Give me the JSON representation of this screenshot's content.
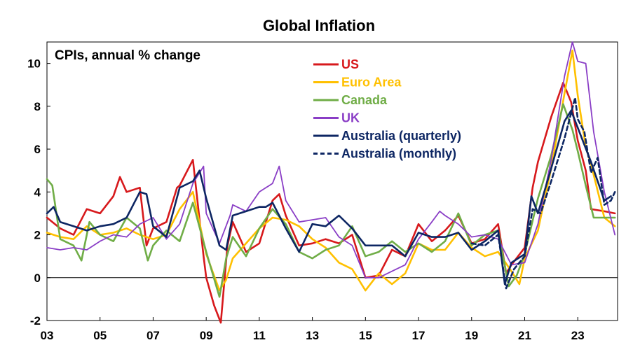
{
  "chart_data": {
    "type": "line",
    "title": "Global Inflation",
    "subtitle": "CPIs, annual % change",
    "xlabel": "",
    "ylabel": "",
    "xlim": [
      2003.0,
      2024.5
    ],
    "ylim": [
      -2,
      11
    ],
    "yticks": [
      -2,
      0,
      2,
      4,
      6,
      8,
      10
    ],
    "xticks": [
      2003,
      2005,
      2007,
      2009,
      2011,
      2013,
      2015,
      2017,
      2019,
      2021,
      2023
    ],
    "xtick_labels": [
      "03",
      "05",
      "07",
      "09",
      "11",
      "13",
      "15",
      "17",
      "19",
      "21",
      "23"
    ],
    "zero_line": true,
    "legend_position": "top-center",
    "series": [
      {
        "name": "US",
        "color": "#d7191c",
        "dash": false,
        "x": [
          2003.0,
          2003.5,
          2004.0,
          2004.5,
          2005.0,
          2005.5,
          2005.75,
          2006.0,
          2006.5,
          2006.75,
          2007.0,
          2007.5,
          2007.9,
          2008.0,
          2008.5,
          2008.9,
          2009.0,
          2009.3,
          2009.55,
          2009.8,
          2010.0,
          2010.5,
          2011.0,
          2011.5,
          2011.75,
          2012.0,
          2012.5,
          2013.0,
          2013.5,
          2014.0,
          2014.5,
          2015.0,
          2015.5,
          2016.0,
          2016.5,
          2017.0,
          2017.5,
          2018.0,
          2018.5,
          2019.0,
          2019.5,
          2020.0,
          2020.3,
          2020.5,
          2021.0,
          2021.3,
          2021.5,
          2022.0,
          2022.45,
          2022.75,
          2023.0,
          2023.3,
          2023.5,
          2024.0,
          2024.4
        ],
        "y": [
          2.8,
          2.3,
          2.0,
          3.2,
          3.0,
          3.8,
          4.7,
          4.0,
          4.2,
          1.5,
          2.3,
          2.6,
          4.2,
          4.3,
          5.5,
          1.0,
          0.0,
          -1.3,
          -2.1,
          1.5,
          2.6,
          1.2,
          1.6,
          3.6,
          3.9,
          2.9,
          1.5,
          1.6,
          1.8,
          1.6,
          2.0,
          0.0,
          0.1,
          1.3,
          1.0,
          2.5,
          1.7,
          2.2,
          2.9,
          1.6,
          1.8,
          2.5,
          0.2,
          0.6,
          1.4,
          4.2,
          5.4,
          7.5,
          9.1,
          8.2,
          6.4,
          5.0,
          3.2,
          3.1,
          3.0
        ]
      },
      {
        "name": "Euro Area",
        "color": "#ffc000",
        "dash": false,
        "x": [
          2003.0,
          2003.5,
          2004.0,
          2004.5,
          2005.0,
          2005.5,
          2006.0,
          2006.5,
          2007.0,
          2007.5,
          2008.0,
          2008.5,
          2009.0,
          2009.5,
          2009.75,
          2010.0,
          2010.5,
          2011.0,
          2011.5,
          2012.0,
          2012.5,
          2013.0,
          2013.5,
          2014.0,
          2014.5,
          2015.0,
          2015.5,
          2016.0,
          2016.5,
          2017.0,
          2017.5,
          2018.0,
          2018.5,
          2019.0,
          2019.5,
          2020.0,
          2020.5,
          2020.8,
          2021.0,
          2021.5,
          2022.0,
          2022.5,
          2022.8,
          2023.0,
          2023.3,
          2023.5,
          2024.0,
          2024.4
        ],
        "y": [
          2.1,
          1.9,
          1.8,
          2.4,
          2.0,
          2.1,
          2.3,
          2.0,
          1.8,
          2.0,
          3.2,
          4.0,
          1.1,
          -0.6,
          -0.1,
          0.9,
          1.6,
          2.3,
          2.8,
          2.7,
          2.4,
          1.8,
          1.4,
          0.7,
          0.4,
          -0.6,
          0.2,
          -0.3,
          0.2,
          1.6,
          1.3,
          1.3,
          2.1,
          1.4,
          1.0,
          1.2,
          0.3,
          -0.3,
          0.9,
          2.2,
          5.1,
          8.6,
          10.6,
          8.5,
          6.1,
          5.3,
          2.8,
          2.4
        ]
      },
      {
        "name": "Canada",
        "color": "#70ad47",
        "dash": false,
        "x": [
          2003.0,
          2003.2,
          2003.5,
          2004.0,
          2004.3,
          2004.6,
          2005.0,
          2005.5,
          2006.0,
          2006.5,
          2006.8,
          2007.0,
          2007.5,
          2008.0,
          2008.5,
          2009.0,
          2009.5,
          2009.75,
          2010.0,
          2010.5,
          2011.0,
          2011.5,
          2012.0,
          2012.5,
          2013.0,
          2013.5,
          2014.0,
          2014.5,
          2015.0,
          2015.5,
          2016.0,
          2016.5,
          2017.0,
          2017.5,
          2018.0,
          2018.5,
          2019.0,
          2019.5,
          2020.0,
          2020.4,
          2020.7,
          2021.0,
          2021.5,
          2022.0,
          2022.45,
          2022.8,
          2023.0,
          2023.3,
          2023.6,
          2024.0,
          2024.4
        ],
        "y": [
          4.6,
          4.3,
          1.8,
          1.5,
          0.8,
          2.6,
          2.0,
          1.7,
          2.8,
          2.3,
          0.8,
          1.5,
          2.2,
          1.7,
          3.5,
          1.2,
          -0.9,
          0.9,
          1.9,
          1.0,
          2.3,
          3.2,
          2.5,
          1.2,
          0.9,
          1.3,
          1.5,
          2.4,
          1.0,
          1.2,
          1.7,
          1.2,
          1.6,
          1.2,
          1.7,
          3.0,
          1.5,
          2.0,
          2.2,
          -0.4,
          0.1,
          1.1,
          3.7,
          5.7,
          8.1,
          6.9,
          5.9,
          4.3,
          2.8,
          2.8,
          2.8
        ]
      },
      {
        "name": "UK",
        "color": "#8a3ec6",
        "dash": false,
        "x": [
          2003.0,
          2003.5,
          2004.0,
          2004.5,
          2005.0,
          2005.5,
          2006.0,
          2006.5,
          2007.0,
          2007.5,
          2008.0,
          2008.5,
          2008.9,
          2009.0,
          2009.5,
          2009.9,
          2010.0,
          2010.5,
          2011.0,
          2011.5,
          2011.75,
          2012.0,
          2012.5,
          2013.0,
          2013.5,
          2014.0,
          2014.5,
          2015.0,
          2015.5,
          2016.0,
          2016.5,
          2017.0,
          2017.5,
          2017.8,
          2018.0,
          2018.5,
          2019.0,
          2019.5,
          2020.0,
          2020.5,
          2021.0,
          2021.5,
          2022.0,
          2022.5,
          2022.8,
          2023.0,
          2023.3,
          2023.6,
          2024.0,
          2024.4
        ],
        "y": [
          1.4,
          1.3,
          1.4,
          1.3,
          1.7,
          2.0,
          1.9,
          2.5,
          2.8,
          1.8,
          2.5,
          4.4,
          5.2,
          3.0,
          1.6,
          2.9,
          3.4,
          3.1,
          4.0,
          4.4,
          5.2,
          3.6,
          2.6,
          2.7,
          2.8,
          1.9,
          1.5,
          0.0,
          0.0,
          0.3,
          0.6,
          1.8,
          2.6,
          3.1,
          2.9,
          2.5,
          1.9,
          2.0,
          1.8,
          0.6,
          0.7,
          2.5,
          5.5,
          9.4,
          11.0,
          10.1,
          10.0,
          6.8,
          4.0,
          2.0
        ]
      },
      {
        "name": "Australia (quarterly)",
        "color": "#0d2663",
        "dash": false,
        "x": [
          2003.0,
          2003.25,
          2003.5,
          2004.0,
          2004.5,
          2005.0,
          2005.5,
          2006.0,
          2006.5,
          2006.75,
          2007.0,
          2007.5,
          2008.0,
          2008.5,
          2008.75,
          2009.0,
          2009.5,
          2009.75,
          2010.0,
          2010.5,
          2011.0,
          2011.25,
          2011.5,
          2012.0,
          2012.5,
          2013.0,
          2013.5,
          2014.0,
          2014.5,
          2015.0,
          2015.5,
          2016.0,
          2016.5,
          2017.0,
          2017.5,
          2018.0,
          2018.5,
          2019.0,
          2019.5,
          2020.0,
          2020.25,
          2020.5,
          2021.0,
          2021.25,
          2021.5,
          2022.0,
          2022.5,
          2022.75,
          2023.0,
          2023.5,
          2024.0,
          2024.25
        ],
        "y": [
          3.0,
          3.3,
          2.6,
          2.4,
          2.2,
          2.4,
          2.5,
          2.8,
          4.0,
          3.9,
          2.4,
          1.9,
          4.2,
          4.5,
          5.0,
          3.7,
          1.5,
          1.3,
          2.9,
          3.1,
          3.3,
          3.3,
          3.5,
          2.3,
          1.2,
          2.5,
          2.4,
          2.9,
          2.3,
          1.5,
          1.5,
          1.5,
          1.0,
          2.1,
          1.9,
          1.9,
          2.1,
          1.3,
          1.7,
          2.2,
          -0.3,
          0.7,
          1.1,
          3.8,
          3.0,
          5.1,
          7.3,
          7.8,
          7.0,
          5.4,
          3.6,
          3.8
        ]
      },
      {
        "name": "Australia (monthly)",
        "color": "#0d2663",
        "dash": true,
        "x": [
          2019.0,
          2019.5,
          2020.0,
          2020.3,
          2020.6,
          2021.0,
          2021.3,
          2021.6,
          2022.0,
          2022.5,
          2022.9,
          2023.0,
          2023.25,
          2023.5,
          2023.75,
          2024.0,
          2024.25,
          2024.4
        ],
        "y": [
          1.6,
          1.5,
          2.0,
          -0.5,
          0.4,
          1.0,
          3.2,
          3.0,
          4.5,
          6.5,
          8.4,
          7.4,
          6.8,
          4.9,
          5.6,
          3.4,
          3.6,
          4.0
        ]
      }
    ]
  }
}
